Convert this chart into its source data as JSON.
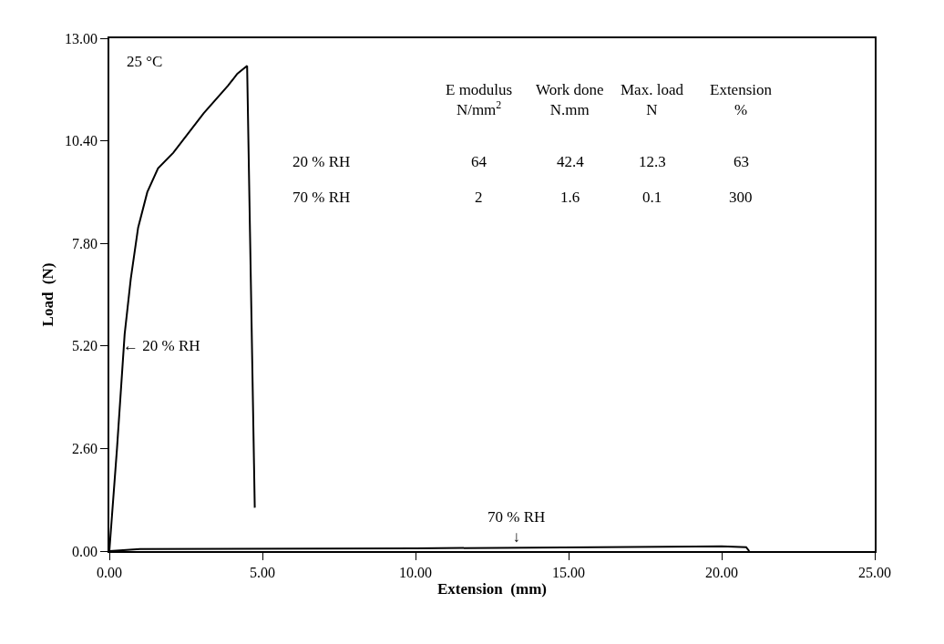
{
  "chart_data": {
    "type": "line",
    "xlabel": "Extension  (mm)",
    "ylabel": "Load  (N)",
    "xlim": [
      0,
      25
    ],
    "xticks": [
      {
        "value": 0,
        "label": "0.00"
      },
      {
        "value": 5,
        "label": "5.00"
      },
      {
        "value": 10,
        "label": "10.00"
      },
      {
        "value": 15,
        "label": "15.00"
      },
      {
        "value": 20,
        "label": "20.00"
      },
      {
        "value": 25,
        "label": "25.00"
      }
    ],
    "ylim": [
      0,
      13
    ],
    "yticks": [
      {
        "value": 0,
        "label": "0.00"
      },
      {
        "value": 2.6,
        "label": "2.60"
      },
      {
        "value": 5.2,
        "label": "5.20"
      },
      {
        "value": 7.8,
        "label": "7.80"
      },
      {
        "value": 10.4,
        "label": "10.40"
      },
      {
        "value": 13,
        "label": "13.00"
      }
    ],
    "marker": "none",
    "line_style": "solid",
    "series": [
      {
        "color": "#000000",
        "x": [
          0,
          0.25,
          0.5,
          0.7,
          0.94,
          1.24,
          1.59,
          2.09,
          3.08,
          3.88,
          4.18,
          4.5,
          4.75
        ],
        "values": [
          0,
          2.6,
          5.5,
          6.9,
          8.2,
          9.1,
          9.7,
          10.1,
          11.1,
          11.8,
          12.1,
          12.3,
          1.1
        ]
      },
      {
        "color": "#000000",
        "x": [
          0,
          1,
          10,
          20,
          20.8,
          20.9
        ],
        "values": [
          0,
          0.05,
          0.07,
          0.12,
          0.1,
          0
        ]
      }
    ],
    "annotations": [
      "25 °C",
      "E modulus\nN/mm$^{2}$",
      "Work done\nN.mm",
      "Max. load\nN",
      "Extension\n%",
      "20 % RH",
      "64",
      "42.4",
      "12.3",
      "63",
      "70 % RH",
      "2",
      "1.6",
      "0.1",
      "300",
      {
        "text": "← 20 % RH",
        "x": 0.4,
        "y": 5.2
      },
      {
        "text": "70 % RH\n↓",
        "x": 13.3,
        "y": 0.1
      }
    ]
  }
}
